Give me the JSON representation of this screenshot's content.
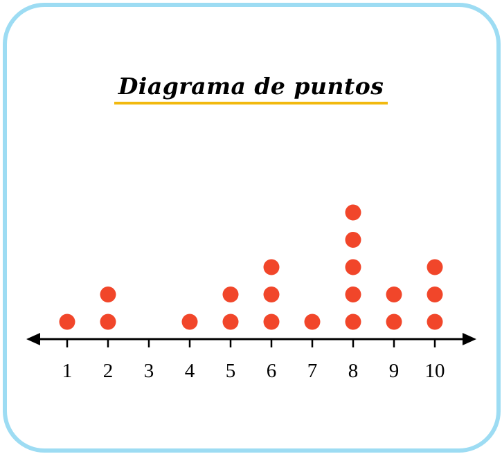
{
  "chart_data": {
    "type": "scatter",
    "subtype": "dot-plot",
    "title": "Diagrama de puntos",
    "x": [
      1,
      2,
      3,
      4,
      5,
      6,
      7,
      8,
      9,
      10
    ],
    "counts": [
      1,
      2,
      0,
      1,
      2,
      3,
      1,
      5,
      2,
      3
    ],
    "tick_labels": [
      "1",
      "2",
      "3",
      "4",
      "5",
      "6",
      "7",
      "8",
      "9",
      "10"
    ],
    "xlim": [
      1,
      10
    ],
    "grid": false,
    "axis_arrows": true,
    "colors": {
      "dot": "#f1462a",
      "axis": "#000000",
      "frame": "#9ddcf3",
      "title_underline": "#f2b90f"
    }
  }
}
